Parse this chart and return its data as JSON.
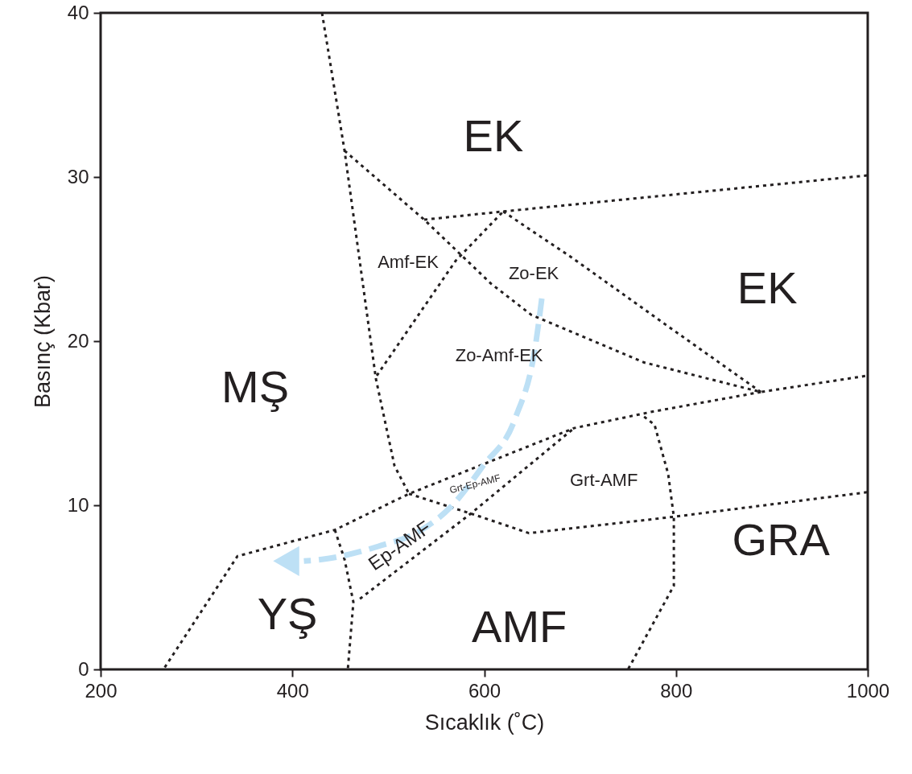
{
  "chart_data": {
    "type": "line",
    "xlabel": "Sıcaklık (˚C)",
    "ylabel": "Basınç (Kbar)",
    "xlim": [
      200,
      1000
    ],
    "xticks": [
      200,
      400,
      600,
      800,
      1000
    ],
    "ylim": [
      0,
      40
    ],
    "yticks": [
      0,
      10,
      20,
      30,
      40
    ],
    "grid": false,
    "marker": "none",
    "line_style": "dotted",
    "series": [
      {
        "color": "#231f20",
        "x": [
          430.9,
          454.4,
          487.1,
          506.5,
          521.6
        ],
        "values": [
          40,
          31.6,
          17.7,
          12.4,
          10.7
        ]
      },
      {
        "color": "#231f20",
        "x": [
          454.4,
          537.5,
          607.2,
          649.2,
          766.8,
          888.5,
          1000
        ],
        "values": [
          31.6,
          27.4,
          23.5,
          21.6,
          18.7,
          16.9,
          17.9
        ]
      },
      {
        "color": "#231f20",
        "x": [
          537.5,
          619.8,
          1000
        ],
        "values": [
          27.4,
          27.9,
          30.1
        ]
      },
      {
        "color": "#231f20",
        "x": [
          488.0,
          570.3,
          619.8
        ],
        "values": [
          17.9,
          24.9,
          27.9
        ]
      },
      {
        "color": "#231f20",
        "x": [
          619.8,
          691.2,
          789.4,
          888.5
        ],
        "values": [
          27.9,
          25.1,
          21.0,
          16.9
        ]
      },
      {
        "color": "#231f20",
        "x": [
          888.5,
          775.1,
          693.7,
          521.6,
          444.3,
          342.7,
          265.5
        ],
        "values": [
          16.9,
          15.7,
          14.7,
          10.7,
          8.5,
          6.9,
          0
        ]
      },
      {
        "color": "#231f20",
        "x": [
          470.4,
          586.2,
          693.7
        ],
        "values": [
          4.3,
          9.5,
          14.7
        ]
      },
      {
        "color": "#231f20",
        "x": [
          444.3,
          454.4,
          463.6,
          457.8
        ],
        "values": [
          8.5,
          6.7,
          4.1,
          0
        ]
      },
      {
        "color": "#231f20",
        "x": [
          521.6,
          596.3,
          646.7,
          797.8,
          1000
        ],
        "values": [
          10.7,
          9.3,
          8.3,
          9.3,
          10.8
        ]
      },
      {
        "color": "#231f20",
        "x": [
          766.8,
          777.7,
          791.9,
          797.8,
          797.8,
          750
        ],
        "values": [
          15.4,
          14.9,
          11.9,
          9.3,
          5.1,
          0
        ]
      },
      {
        "color": "#bde0f5",
        "line_style": "dashed",
        "x": [
          660.1,
          653.4,
          632.4,
          598.8,
          565.2,
          531.7,
          489.7,
          430.9,
          412.0
        ],
        "values": [
          22.6,
          19.7,
          15.3,
          12.4,
          9.9,
          8.4,
          7.5,
          6.7,
          6.6
        ]
      }
    ],
    "annotations": [
      "EK",
      "EK",
      "MŞ",
      "YŞ",
      "AMF",
      "GRA",
      "Amf-EK",
      "Zo-EK",
      "Zo-Amf-EK",
      "Grt-AMF",
      "Grt-Ep-AMF",
      "Ep-AMF"
    ]
  }
}
